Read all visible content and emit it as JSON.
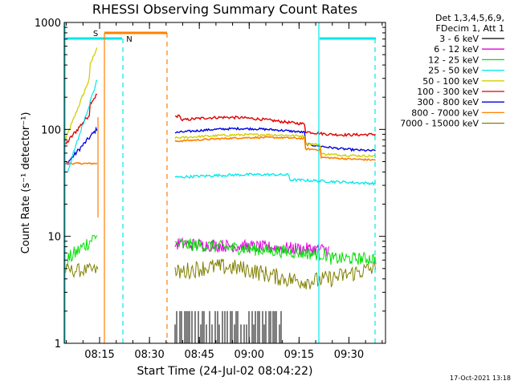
{
  "chart_data": {
    "type": "line",
    "title": "RHESSI Observing Summary Count Rates",
    "xlabel": "Start Time (24-Jul-02 08:04:22)",
    "ylabel": "Count Rate (s⁻¹ detector⁻¹)",
    "ylog": true,
    "ylim": [
      1,
      1000
    ],
    "yticks": [
      {
        "value": 1,
        "label": "1"
      },
      {
        "value": 10,
        "label": "10"
      },
      {
        "value": 100,
        "label": "100"
      },
      {
        "value": 1000,
        "label": "1000"
      }
    ],
    "xlim": [
      "08:04:22",
      "08:41:00"
    ],
    "xticks": [
      "08:15",
      "08:30",
      "08:45",
      "09:00",
      "09:15",
      "09:30"
    ],
    "legend_header": [
      "Det 1,3,4,5,6,9,",
      "FDecim 1, Att 1"
    ],
    "legend_position": "right",
    "series": [
      {
        "name": "3 - 6 keV",
        "color": "#000000"
      },
      {
        "name": "6 - 12 keV",
        "color": "#e000e0"
      },
      {
        "name": "12 - 25 keV",
        "color": "#00e000"
      },
      {
        "name": "25 - 50 keV",
        "color": "#00e8e8"
      },
      {
        "name": "50 - 100 keV",
        "color": "#d0d000"
      },
      {
        "name": "100 - 300 keV",
        "color": "#e00000"
      },
      {
        "name": "300 - 800 keV",
        "color": "#0000e0"
      },
      {
        "name": "800 - 7000 keV",
        "color": "#ff8000"
      },
      {
        "name": "7000 - 15000 keV",
        "color": "#808000"
      }
    ],
    "markers": [
      {
        "label": "S",
        "color": "#ff8000"
      },
      {
        "label": "N",
        "color": "#00e8e8"
      }
    ],
    "footer_date": "17-Oct-2021 13:18"
  }
}
